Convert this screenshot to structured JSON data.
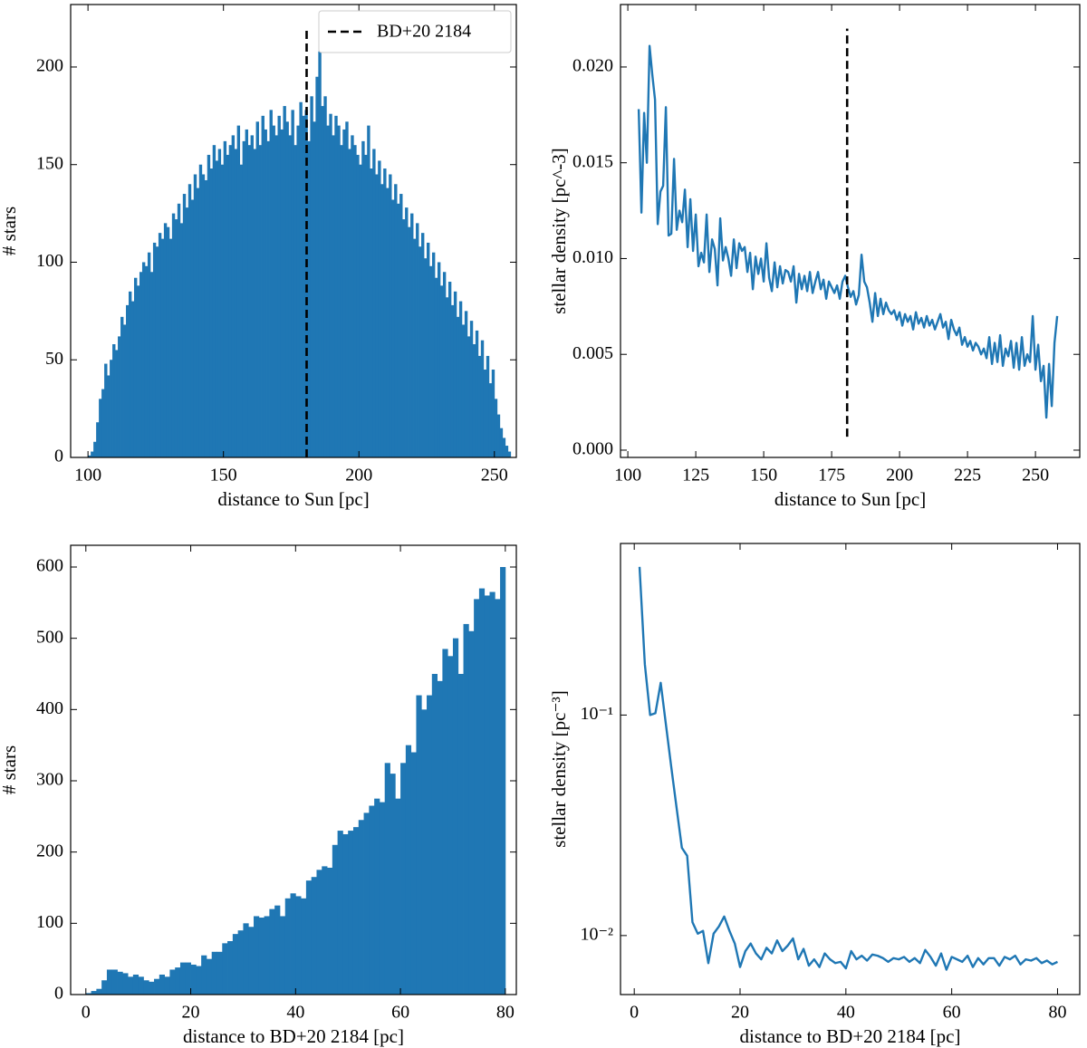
{
  "chart_data": [
    {
      "type": "histogram",
      "xlabel": "distance to Sun [pc]",
      "ylabel": "# stars",
      "color": "#1f77b4",
      "bins": [
        100,
        101,
        102,
        103,
        104,
        105,
        106,
        107,
        108,
        109,
        110,
        111,
        112,
        113,
        114,
        115,
        116,
        117,
        118,
        119,
        120,
        121,
        122,
        123,
        124,
        125,
        126,
        127,
        128,
        129,
        130,
        131,
        132,
        133,
        134,
        135,
        136,
        137,
        138,
        139,
        140,
        141,
        142,
        143,
        144,
        145,
        146,
        147,
        148,
        149,
        150,
        151,
        152,
        153,
        154,
        155,
        156,
        157,
        158,
        159,
        160,
        161,
        162,
        163,
        164,
        165,
        166,
        167,
        168,
        169,
        170,
        171,
        172,
        173,
        174,
        175,
        176,
        177,
        178,
        179,
        180,
        181,
        182,
        183,
        184,
        185,
        186,
        187,
        188,
        189,
        190,
        191,
        192,
        193,
        194,
        195,
        196,
        197,
        198,
        199,
        200,
        201,
        202,
        203,
        204,
        205,
        206,
        207,
        208,
        209,
        210,
        211,
        212,
        213,
        214,
        215,
        216,
        217,
        218,
        219,
        220,
        221,
        222,
        223,
        224,
        225,
        226,
        227,
        228,
        229,
        230,
        231,
        232,
        233,
        234,
        235,
        236,
        237,
        238,
        239,
        240,
        241,
        242,
        243,
        244,
        245,
        246,
        247,
        248,
        249,
        250,
        251,
        252,
        253,
        254,
        255,
        256
      ],
      "counts": [
        1,
        3,
        8,
        18,
        30,
        35,
        48,
        42,
        50,
        58,
        55,
        62,
        72,
        68,
        78,
        85,
        80,
        92,
        88,
        95,
        100,
        98,
        105,
        95,
        110,
        108,
        115,
        112,
        120,
        118,
        112,
        125,
        122,
        130,
        120,
        135,
        128,
        140,
        132,
        145,
        138,
        150,
        145,
        142,
        155,
        148,
        160,
        152,
        158,
        150,
        162,
        155,
        160,
        165,
        158,
        170,
        150,
        162,
        168,
        160,
        165,
        158,
        172,
        160,
        175,
        168,
        162,
        178,
        170,
        165,
        175,
        168,
        180,
        172,
        165,
        178,
        160,
        170,
        182,
        175,
        178,
        162,
        185,
        172,
        195,
        208,
        180,
        185,
        170,
        176,
        165,
        175,
        170,
        160,
        168,
        172,
        158,
        165,
        160,
        155,
        150,
        162,
        155,
        170,
        148,
        158,
        145,
        152,
        140,
        148,
        138,
        145,
        132,
        140,
        130,
        135,
        122,
        128,
        118,
        125,
        112,
        120,
        108,
        115,
        102,
        110,
        98,
        105,
        92,
        100,
        88,
        95,
        82,
        90,
        78,
        85,
        72,
        80,
        68,
        75,
        62,
        70,
        58,
        65,
        52,
        60,
        45,
        52,
        38,
        45,
        30,
        22,
        15,
        10,
        6,
        3
      ],
      "xlim": [
        93.6,
        258.1
      ],
      "ylim": [
        0,
        232
      ],
      "xticks": [
        100,
        150,
        200,
        250
      ],
      "yticks": [
        0,
        50,
        100,
        150,
        200
      ],
      "vline": {
        "x": 180.7,
        "ymin": 0,
        "ymax": 220,
        "label": "BD+20 2184",
        "color": "#000000"
      },
      "legend": "upper right"
    },
    {
      "type": "line",
      "xlabel": "distance to Sun [pc]",
      "ylabel": "stellar density [pc^-3]",
      "color": "#1f77b4",
      "x": [
        104,
        105,
        106,
        107,
        108,
        109,
        110,
        111,
        112,
        113,
        114,
        115,
        116,
        117,
        118,
        119,
        120,
        121,
        122,
        123,
        124,
        125,
        126,
        127,
        128,
        129,
        130,
        131,
        132,
        133,
        134,
        135,
        136,
        137,
        138,
        139,
        140,
        141,
        142,
        143,
        144,
        145,
        146,
        147,
        148,
        149,
        150,
        151,
        152,
        153,
        154,
        155,
        156,
        157,
        158,
        159,
        160,
        161,
        162,
        163,
        164,
        165,
        166,
        167,
        168,
        169,
        170,
        171,
        172,
        173,
        174,
        175,
        176,
        177,
        178,
        179,
        180,
        181,
        182,
        183,
        184,
        185,
        186,
        187,
        188,
        189,
        190,
        191,
        192,
        193,
        194,
        195,
        196,
        197,
        198,
        199,
        200,
        201,
        202,
        203,
        204,
        205,
        206,
        207,
        208,
        209,
        210,
        211,
        212,
        213,
        214,
        215,
        216,
        217,
        218,
        219,
        220,
        221,
        222,
        223,
        224,
        225,
        226,
        227,
        228,
        229,
        230,
        231,
        232,
        233,
        234,
        235,
        236,
        237,
        238,
        239,
        240,
        241,
        242,
        243,
        244,
        245,
        246,
        247,
        248,
        249,
        250,
        251,
        252,
        253,
        254,
        255,
        256,
        257,
        258
      ],
      "values": [
        0.0178,
        0.0124,
        0.0176,
        0.015,
        0.0211,
        0.0196,
        0.0183,
        0.0118,
        0.0135,
        0.0138,
        0.0179,
        0.0112,
        0.0113,
        0.0152,
        0.0115,
        0.0125,
        0.0119,
        0.0136,
        0.0106,
        0.0131,
        0.0104,
        0.0123,
        0.0096,
        0.0103,
        0.0098,
        0.0123,
        0.0093,
        0.011,
        0.0105,
        0.0086,
        0.0121,
        0.0099,
        0.0106,
        0.01,
        0.0091,
        0.011,
        0.0095,
        0.0108,
        0.0104,
        0.0106,
        0.0093,
        0.0103,
        0.0084,
        0.0101,
        0.0092,
        0.01,
        0.0088,
        0.0108,
        0.009,
        0.0083,
        0.0098,
        0.0085,
        0.0096,
        0.0087,
        0.0094,
        0.0093,
        0.0088,
        0.0096,
        0.0077,
        0.0092,
        0.0084,
        0.0091,
        0.0083,
        0.0093,
        0.0082,
        0.0088,
        0.0093,
        0.0084,
        0.0089,
        0.0079,
        0.0088,
        0.0085,
        0.0082,
        0.0086,
        0.0079,
        0.0088,
        0.0091,
        0.0085,
        0.008,
        0.0083,
        0.0076,
        0.0081,
        0.0102,
        0.0088,
        0.0085,
        0.0077,
        0.0067,
        0.0082,
        0.007,
        0.0079,
        0.0071,
        0.0077,
        0.0073,
        0.0071,
        0.0073,
        0.0068,
        0.0072,
        0.0065,
        0.0071,
        0.0067,
        0.007,
        0.0063,
        0.0072,
        0.0066,
        0.0069,
        0.0064,
        0.007,
        0.0065,
        0.0068,
        0.0063,
        0.0067,
        0.0071,
        0.0064,
        0.0067,
        0.0058,
        0.0068,
        0.0063,
        0.006,
        0.0064,
        0.0055,
        0.0059,
        0.0054,
        0.0057,
        0.0052,
        0.0056,
        0.0054,
        0.005,
        0.0053,
        0.0048,
        0.0059,
        0.0045,
        0.0056,
        0.0046,
        0.006,
        0.0044,
        0.0053,
        0.0049,
        0.0057,
        0.0043,
        0.0056,
        0.0042,
        0.0059,
        0.0044,
        0.005,
        0.0046,
        0.007,
        0.0042,
        0.0055,
        0.0036,
        0.0044,
        0.0017,
        0.0045,
        0.0023,
        0.0056,
        0.007
      ],
      "xlim": [
        97.3,
        266.3
      ],
      "ylim": [
        -0.00038,
        0.02326
      ],
      "xticks": [
        100,
        125,
        150,
        175,
        200,
        225,
        250
      ],
      "yticks": [
        {
          "value": 0,
          "label": "0.000"
        },
        0.005,
        {
          "value": 0.01,
          "label": "0.010"
        },
        0.015,
        {
          "value": 0.02,
          "label": "0.020"
        }
      ],
      "vline": {
        "x": 180.7,
        "ymin": 0.0007,
        "ymax": 0.022,
        "color": "#000000"
      }
    },
    {
      "type": "histogram",
      "xlabel": "distance to BD+20 2184 [pc]",
      "ylabel": "# stars",
      "color": "#1f77b4",
      "bins": [
        0,
        1,
        2,
        3,
        4,
        5,
        6,
        7,
        8,
        9,
        10,
        11,
        12,
        13,
        14,
        15,
        16,
        17,
        18,
        19,
        20,
        21,
        22,
        23,
        24,
        25,
        26,
        27,
        28,
        29,
        30,
        31,
        32,
        33,
        34,
        35,
        36,
        37,
        38,
        39,
        40,
        41,
        42,
        43,
        44,
        45,
        46,
        47,
        48,
        49,
        50,
        51,
        52,
        53,
        54,
        55,
        56,
        57,
        58,
        59,
        60,
        61,
        62,
        63,
        64,
        65,
        66,
        67,
        68,
        69,
        70,
        71,
        72,
        73,
        74,
        75,
        76,
        77,
        78,
        79,
        80
      ],
      "counts": [
        2,
        5,
        8,
        20,
        35,
        35,
        32,
        30,
        25,
        28,
        25,
        20,
        18,
        22,
        28,
        25,
        35,
        38,
        45,
        45,
        42,
        40,
        55,
        50,
        60,
        60,
        72,
        75,
        85,
        90,
        100,
        95,
        110,
        108,
        110,
        120,
        125,
        110,
        135,
        142,
        138,
        135,
        160,
        165,
        175,
        180,
        178,
        210,
        230,
        225,
        230,
        235,
        245,
        255,
        265,
        275,
        270,
        325,
        310,
        275,
        325,
        350,
        340,
        420,
        400,
        420,
        450,
        440,
        485,
        475,
        500,
        450,
        520,
        510,
        555,
        570,
        560,
        565,
        555,
        600
      ],
      "xlim": [
        -2.9,
        82.1
      ],
      "ylim": [
        0,
        630.5
      ],
      "xticks": [
        0,
        20,
        40,
        60,
        80
      ],
      "yticks": [
        0,
        100,
        200,
        300,
        400,
        500,
        600
      ]
    },
    {
      "type": "line",
      "xlabel": "distance to BD+20 2184 [pc]",
      "ylabel": "stellar density [pc⁻³]",
      "color": "#1f77b4",
      "ylog": true,
      "x": [
        1,
        2,
        3,
        4,
        5,
        6,
        7,
        8,
        9,
        10,
        11,
        12,
        13,
        14,
        15,
        16,
        17,
        18,
        19,
        20,
        21,
        22,
        23,
        24,
        25,
        26,
        27,
        28,
        29,
        30,
        31,
        32,
        33,
        34,
        35,
        36,
        37,
        38,
        39,
        40,
        41,
        42,
        43,
        44,
        45,
        46,
        47,
        48,
        49,
        50,
        51,
        52,
        53,
        54,
        55,
        56,
        57,
        58,
        59,
        60,
        61,
        62,
        63,
        64,
        65,
        66,
        67,
        68,
        69,
        70,
        71,
        72,
        73,
        74,
        75,
        76,
        77,
        78,
        79,
        80
      ],
      "values": [
        0.47,
        0.17,
        0.1,
        0.102,
        0.14,
        0.09,
        0.058,
        0.038,
        0.025,
        0.023,
        0.0115,
        0.0102,
        0.0105,
        0.0075,
        0.0102,
        0.011,
        0.0122,
        0.0105,
        0.0092,
        0.0072,
        0.0085,
        0.0092,
        0.0083,
        0.0078,
        0.0088,
        0.0083,
        0.0095,
        0.0085,
        0.009,
        0.0097,
        0.0078,
        0.0087,
        0.0073,
        0.0078,
        0.0072,
        0.0083,
        0.0078,
        0.0075,
        0.0076,
        0.0071,
        0.0085,
        0.0078,
        0.0081,
        0.0077,
        0.0082,
        0.0081,
        0.0079,
        0.0076,
        0.0079,
        0.0078,
        0.008,
        0.0076,
        0.0079,
        0.0075,
        0.0086,
        0.008,
        0.0073,
        0.0083,
        0.007,
        0.008,
        0.0078,
        0.0076,
        0.0081,
        0.0072,
        0.0079,
        0.0074,
        0.0079,
        0.0079,
        0.0073,
        0.008,
        0.0078,
        0.0081,
        0.0074,
        0.0078,
        0.0077,
        0.0079,
        0.0075,
        0.0077,
        0.0074,
        0.0076
      ],
      "xlim": [
        -2.6,
        84.2
      ],
      "ylim": [
        0.0054,
        0.6
      ],
      "xticks": [
        0,
        20,
        40,
        60,
        80
      ],
      "yticks": [
        {
          "value": 0.01,
          "label": "10⁻²"
        },
        {
          "value": 0.1,
          "label": "10⁻¹"
        }
      ]
    }
  ]
}
